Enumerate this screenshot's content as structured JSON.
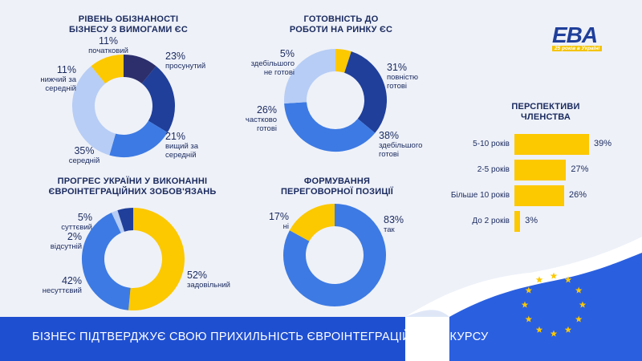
{
  "logo": {
    "brand": "EBA",
    "subtitle": "25 років в Україні"
  },
  "footer": {
    "text": "БІЗНЕС ПІДТВЕРДЖУЄ СВОЮ ПРИХИЛЬНІСТЬ ЄВРОІНТЕГРАЦІЙНОМУ КУРСУ"
  },
  "colors": {
    "dark_navy": "#2c2f6b",
    "blue": "#1f3f9a",
    "mid_blue": "#3d7ae3",
    "light_blue": "#b7cdf5",
    "yellow": "#fcc800",
    "brand_blue": "#1f4fd1"
  },
  "chart_data": [
    {
      "type": "pie",
      "title_line1": "РІВЕНЬ ОБІЗНАНОСТІ",
      "title_line2": "БІЗНЕСУ З ВИМОГАМИ ЄС",
      "labels": [
        "початковий",
        "просунутий",
        "вищий за середній",
        "середній",
        "нижчий за середній"
      ],
      "label_lines": [
        [
          "початковий"
        ],
        [
          "просунутий"
        ],
        [
          "вищий за",
          "середній"
        ],
        [
          "середній"
        ],
        [
          "нижчий за",
          "середній"
        ]
      ],
      "values": [
        11,
        23,
        21,
        35,
        11
      ],
      "value_labels": [
        "11%",
        "23%",
        "21%",
        "35%",
        "11%"
      ],
      "colors": [
        "#2c2f6b",
        "#1f3f9a",
        "#3d7ae3",
        "#b7cdf5",
        "#fcc800"
      ]
    },
    {
      "type": "pie",
      "title_line1": "ГОТОВНІСТЬ ДО",
      "title_line2": "РОБОТИ НА РИНКУ ЄС",
      "labels": [
        "зебільшого не готові",
        "повністю готові",
        "здебільшого готові",
        "частково готові"
      ],
      "label_lines": [
        [
          "здебільшого",
          "не готові"
        ],
        [
          "повністю",
          "готові"
        ],
        [
          "здебільшого",
          "готові"
        ],
        [
          "частково",
          "готові"
        ]
      ],
      "values": [
        5,
        31,
        38,
        26
      ],
      "value_labels": [
        "5%",
        "31%",
        "38%",
        "26%"
      ],
      "colors": [
        "#fcc800",
        "#1f3f9a",
        "#3d7ae3",
        "#b7cdf5"
      ]
    },
    {
      "type": "pie",
      "title_line1": "ПРОГРЕС УКРАЇНИ У ВИКОНАННІ",
      "title_line2": "ЄВРОІНТЕГРАЦІЙНИХ ЗОБОВ'ЯЗАНЬ",
      "labels": [
        "задовільний",
        "несуттєвий",
        "відсутній",
        "суттєвий"
      ],
      "label_lines": [
        [
          "задовільний"
        ],
        [
          "несуттєвий"
        ],
        [
          "відсутній"
        ],
        [
          "суттєвий"
        ]
      ],
      "values": [
        52,
        42,
        2,
        5
      ],
      "value_labels": [
        "52%",
        "42%",
        "2%",
        "5%"
      ],
      "colors": [
        "#fcc800",
        "#3d7ae3",
        "#b7cdf5",
        "#1f3f9a"
      ]
    },
    {
      "type": "pie",
      "title_line1": "ФОРМУВАННЯ",
      "title_line2": "ПЕРЕГОВОРНОЇ ПОЗИЦІЇ",
      "labels": [
        "так",
        "ні"
      ],
      "label_lines": [
        [
          "так"
        ],
        [
          "ні"
        ]
      ],
      "values": [
        83,
        17
      ],
      "value_labels": [
        "83%",
        "17%"
      ],
      "colors": [
        "#3d7ae3",
        "#fcc800"
      ]
    },
    {
      "type": "bar",
      "orientation": "horizontal",
      "title_line1": "ПЕРСПЕКТИВИ",
      "title_line2": "ЧЛЕНСТВА",
      "categories": [
        "5-10 років",
        "2-5 років",
        "Більше 10 років",
        "До 2 років"
      ],
      "values": [
        39,
        27,
        26,
        3
      ],
      "value_labels": [
        "39%",
        "27%",
        "26%",
        "3%"
      ],
      "color": "#fcc800"
    }
  ]
}
